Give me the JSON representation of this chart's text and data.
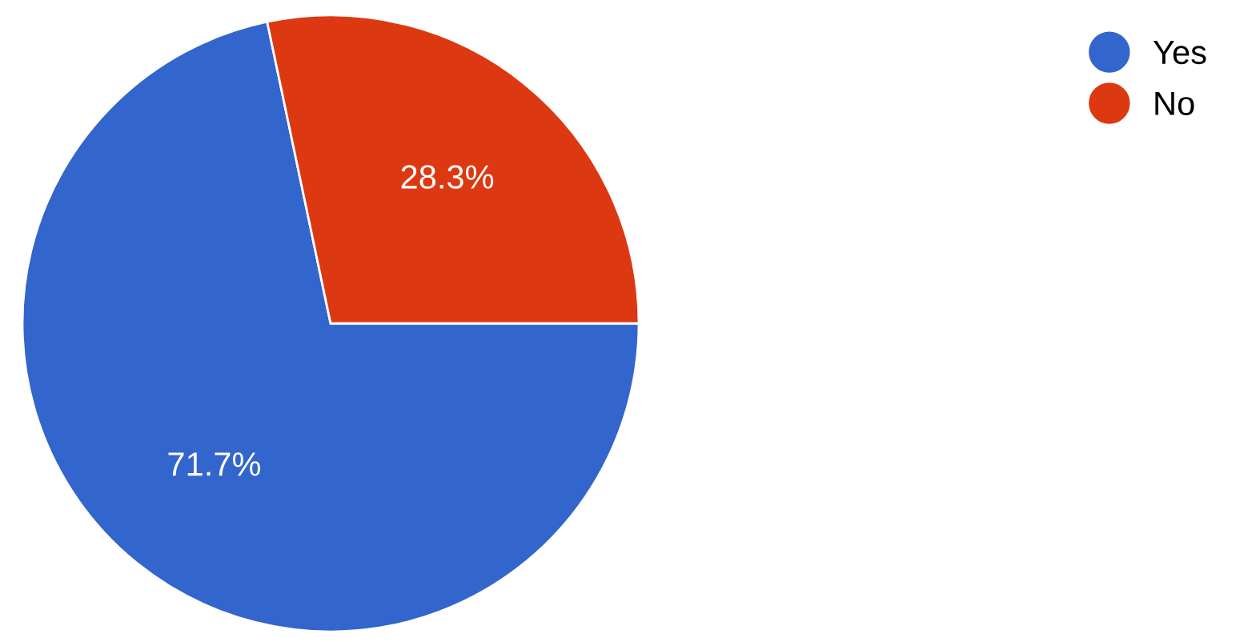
{
  "chart_data": {
    "type": "pie",
    "categories": [
      "Yes",
      "No"
    ],
    "values": [
      71.7,
      28.3
    ],
    "colors": [
      "#3366cc",
      "#dc3912"
    ],
    "value_labels": [
      "71.7%",
      "28.3%"
    ],
    "legend": "top right"
  }
}
